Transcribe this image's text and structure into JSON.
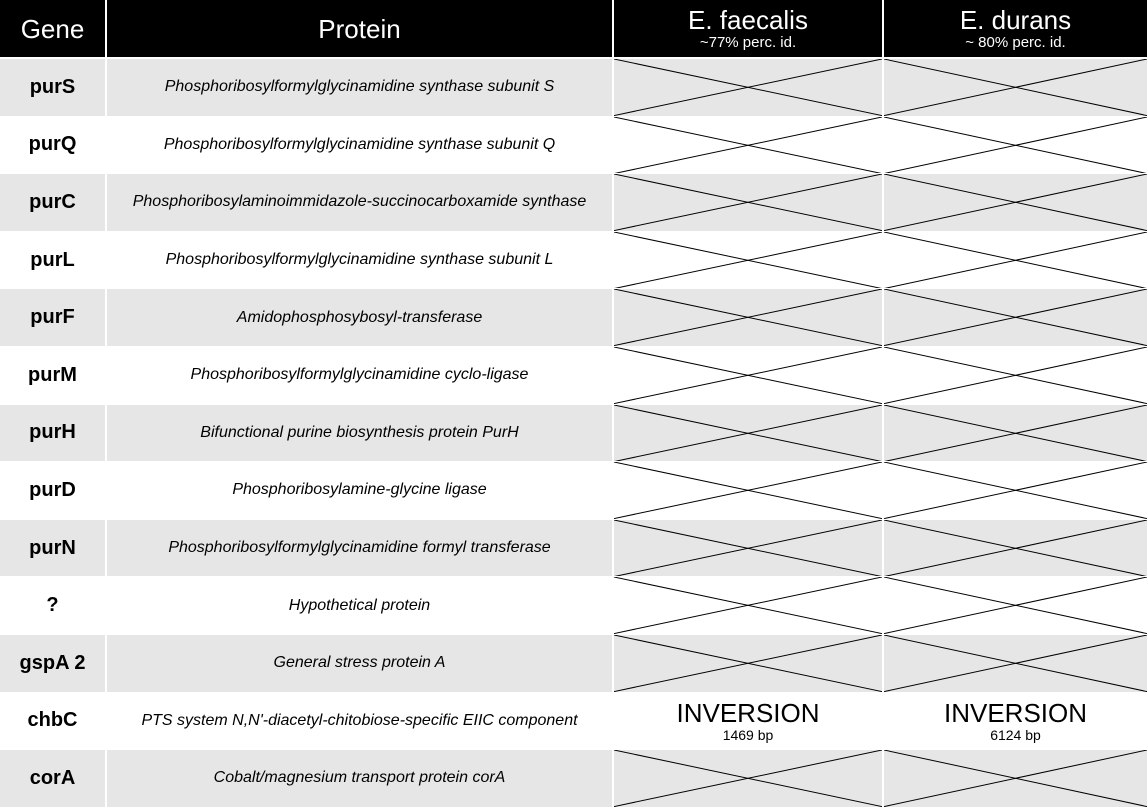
{
  "header": {
    "gene": "Gene",
    "protein": "Protein",
    "species": [
      {
        "name": "E. faecalis",
        "identity": "~77% perc. id."
      },
      {
        "name": "E. durans",
        "identity": "~ 80% perc. id."
      }
    ]
  },
  "rows": [
    {
      "gene": "purS",
      "protein": "Phosphoribosylformylglycinamidine synthase subunit S",
      "cells": [
        {
          "type": "cross"
        },
        {
          "type": "cross"
        }
      ]
    },
    {
      "gene": "purQ",
      "protein": "Phosphoribosylformylglycinamidine synthase subunit Q",
      "cells": [
        {
          "type": "cross"
        },
        {
          "type": "cross"
        }
      ]
    },
    {
      "gene": "purC",
      "protein": "Phosphoribosylaminoimmidazole-succinocarboxamide synthase",
      "cells": [
        {
          "type": "cross"
        },
        {
          "type": "cross"
        }
      ]
    },
    {
      "gene": "purL",
      "protein": "Phosphoribosylformylglycinamidine synthase subunit L",
      "cells": [
        {
          "type": "cross"
        },
        {
          "type": "cross"
        }
      ]
    },
    {
      "gene": "purF",
      "protein": "Amidophosphosybosyl-transferase",
      "cells": [
        {
          "type": "cross"
        },
        {
          "type": "cross"
        }
      ]
    },
    {
      "gene": "purM",
      "protein": "Phosphoribosylformylglycinamidine cyclo-ligase",
      "cells": [
        {
          "type": "cross"
        },
        {
          "type": "cross"
        }
      ]
    },
    {
      "gene": "purH",
      "protein": "Bifunctional purine biosynthesis protein PurH",
      "cells": [
        {
          "type": "cross"
        },
        {
          "type": "cross"
        }
      ]
    },
    {
      "gene": "purD",
      "protein": "Phosphoribosylamine-glycine ligase",
      "cells": [
        {
          "type": "cross"
        },
        {
          "type": "cross"
        }
      ]
    },
    {
      "gene": "purN",
      "protein": "Phosphoribosylformylglycinamidine formyl transferase",
      "cells": [
        {
          "type": "cross"
        },
        {
          "type": "cross"
        }
      ]
    },
    {
      "gene": "?",
      "protein": "Hypothetical protein",
      "cells": [
        {
          "type": "cross"
        },
        {
          "type": "cross"
        }
      ]
    },
    {
      "gene": "gspA 2",
      "protein": "General stress protein A",
      "cells": [
        {
          "type": "cross"
        },
        {
          "type": "cross"
        }
      ]
    },
    {
      "gene": "chbC",
      "protein": "PTS system N,N'-diacetyl-chitobiose-specific EIIC component",
      "cells": [
        {
          "type": "inversion",
          "label": "INVERSION",
          "size": "1469 bp"
        },
        {
          "type": "inversion",
          "label": "INVERSION",
          "size": "6124 bp"
        }
      ]
    },
    {
      "gene": "corA",
      "protein": "Cobalt/magnesium transport protein corA",
      "cells": [
        {
          "type": "cross"
        },
        {
          "type": "cross"
        }
      ]
    }
  ]
}
